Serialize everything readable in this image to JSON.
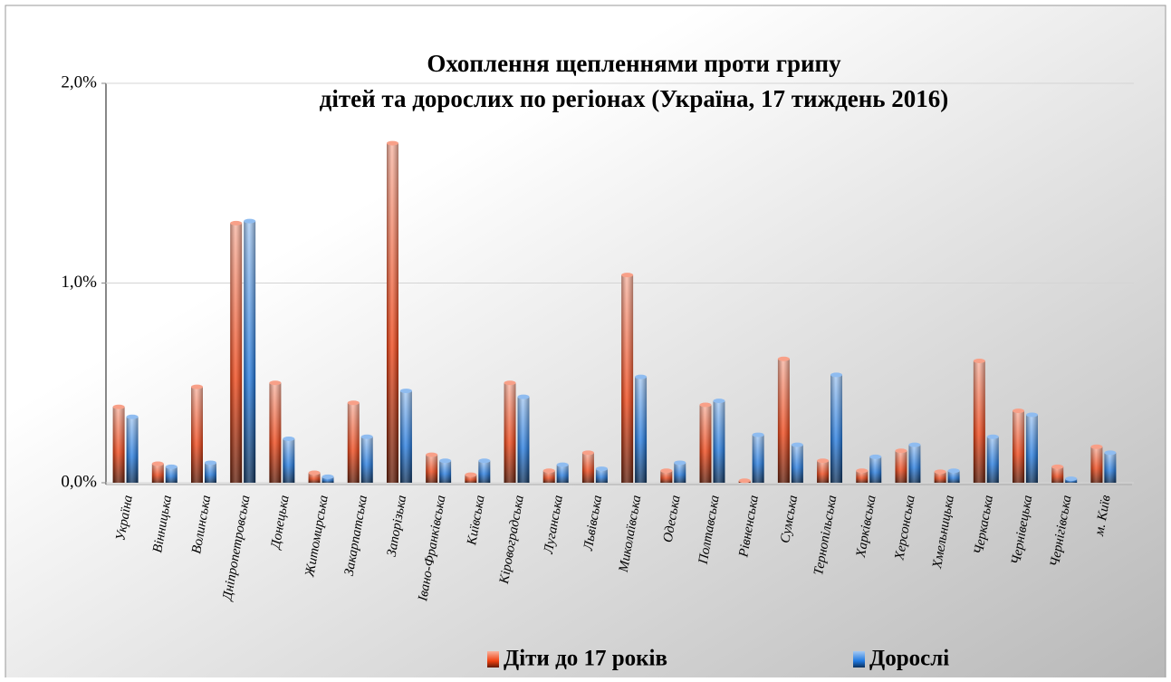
{
  "chart_data": {
    "type": "bar",
    "title": [
      "Охоплення щепленнями проти грипу",
      "дітей та дорослих  по регіонах (Україна, 17 тиждень 2016)"
    ],
    "categories": [
      "Україна",
      "Вінницька",
      "Волинська",
      "Дніпропетровська",
      "Донецька",
      "Житомирська",
      "Закарпатська",
      "Запорізька",
      "Івано-Франківська",
      "Київська",
      "Кіровоградська",
      "Луганська",
      "Львівська",
      "Миколаївська",
      "Одеська",
      "Полтавська",
      "Рівненська",
      "Сумська",
      "Тернопільська",
      "Харківська",
      "Херсонська",
      "Хмельницька",
      "Черкаська",
      "Чернівецька",
      "Чернігівська",
      "м. Київ"
    ],
    "series": [
      {
        "name": "Діти до 17 років",
        "color": "#f04010",
        "values": [
          0.38,
          0.095,
          0.48,
          1.3,
          0.5,
          0.05,
          0.4,
          1.7,
          0.14,
          0.04,
          0.5,
          0.06,
          0.15,
          1.04,
          0.06,
          0.39,
          0.01,
          0.62,
          0.11,
          0.06,
          0.16,
          0.055,
          0.61,
          0.36,
          0.08,
          0.18
        ]
      },
      {
        "name": "Дорослі",
        "color": "#1e78e0",
        "values": [
          0.33,
          0.08,
          0.1,
          1.31,
          0.22,
          0.03,
          0.23,
          0.46,
          0.11,
          0.11,
          0.43,
          0.09,
          0.07,
          0.53,
          0.1,
          0.41,
          0.24,
          0.19,
          0.54,
          0.13,
          0.19,
          0.06,
          0.23,
          0.34,
          0.02,
          0.15
        ]
      }
    ],
    "ylim": [
      0,
      2
    ],
    "yticks": [
      {
        "value": 0,
        "label": "0,0%"
      },
      {
        "value": 1,
        "label": "1,0%"
      },
      {
        "value": 2,
        "label": "2,0%"
      }
    ],
    "grid": true,
    "legend": "bottom"
  }
}
